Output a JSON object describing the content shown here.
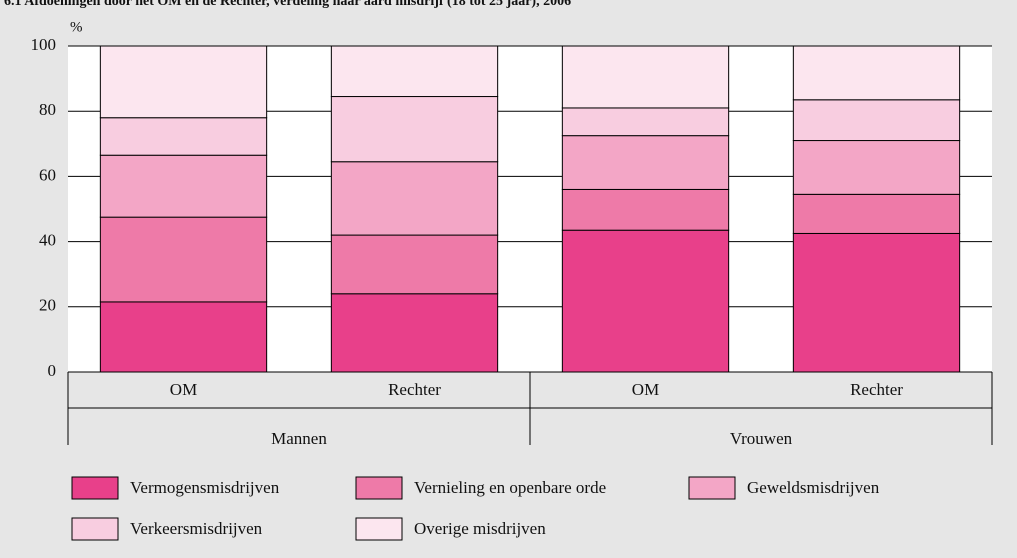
{
  "chart_data": {
    "type": "stacked_bar",
    "title": "6.1 Afdoeningen door het OM en de Rechter, verdeling naar aard misdrijf (18 tot 25 jaar), 2006",
    "ylabel": "%",
    "categories": [
      "OM",
      "Rechter",
      "OM",
      "Rechter"
    ],
    "groups": [
      "Mannen",
      "Vrouwen"
    ],
    "series": [
      {
        "name": "Vermogensmisdrijven",
        "color": "#e8408a",
        "values": [
          21.5,
          24,
          43.5,
          42.5
        ]
      },
      {
        "name": "Vernieling en openbare orde",
        "color": "#ee7aa8",
        "values": [
          26,
          18,
          12.5,
          12
        ]
      },
      {
        "name": "Geweldsmisdrijven",
        "color": "#f3a6c6",
        "values": [
          19,
          22.5,
          16.5,
          16.5
        ]
      },
      {
        "name": "Verkeersmisdrijven",
        "color": "#f8cde0",
        "values": [
          11.5,
          20,
          8.5,
          12.5
        ]
      },
      {
        "name": "Overige misdrijven",
        "color": "#fce6ef",
        "values": [
          22,
          15.5,
          19,
          16.5
        ]
      }
    ],
    "ylim": [
      0,
      100
    ],
    "yticks": [
      0,
      20,
      40,
      60,
      80,
      100
    ],
    "grid": true
  }
}
